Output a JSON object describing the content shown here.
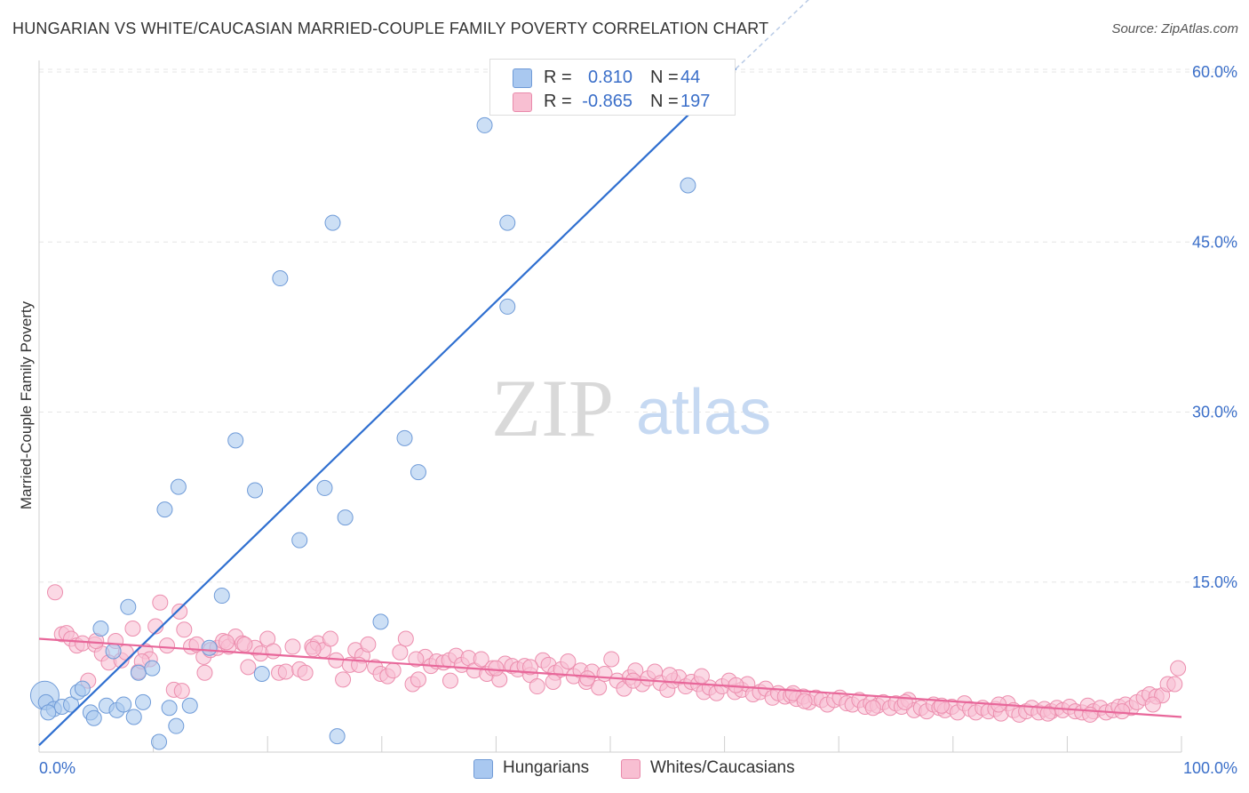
{
  "title": "HUNGARIAN VS WHITE/CAUCASIAN MARRIED-COUPLE FAMILY POVERTY CORRELATION CHART",
  "source": "Source: ZipAtlas.com",
  "watermark": {
    "zip": "ZIP",
    "atlas": "atlas"
  },
  "legend": {
    "r_label": "R =",
    "n_label": "N =",
    "entries": [
      {
        "name": "Hungarians",
        "r": "0.810",
        "n": "44",
        "fill": "#a9c8f0",
        "stroke": "#6f9ad6"
      },
      {
        "name": "Whites/Caucasians",
        "r": "-0.865",
        "n": "197",
        "fill": "#f8bfd2",
        "stroke": "#e98aab"
      }
    ]
  },
  "colors": {
    "blue_fill": "#aac9ef",
    "blue_stroke": "#6f9bd8",
    "blue_line": "#2f6fd0",
    "pink_fill": "#f8c0d3",
    "pink_stroke": "#ec8eae",
    "pink_line": "#e8679a",
    "grid": "#e6e6e6",
    "tick_text": "#3b6fc9"
  },
  "chart_data": {
    "type": "scatter",
    "title": "HUNGARIAN VS WHITE/CAUCASIAN MARRIED-COUPLE FAMILY POVERTY CORRELATION CHART",
    "xlabel": "",
    "ylabel": "Married-Couple Family Poverty",
    "xlim": [
      0,
      100
    ],
    "ylim": [
      0,
      62
    ],
    "x_tick_labels": [
      "0.0%",
      "100.0%"
    ],
    "y_ticks": [
      15,
      30,
      45,
      60
    ],
    "y_tick_labels": [
      "15.0%",
      "30.0%",
      "45.0%",
      "60.0%"
    ],
    "series": [
      {
        "name": "Hungarians",
        "r": 0.81,
        "n": 44,
        "trend": {
          "x": [
            0,
            61
          ],
          "y": [
            0.6,
            60.3
          ],
          "dashed_to": {
            "x": 68,
            "y": 67
          }
        },
        "points": [
          [
            0.5,
            5.0,
            "big"
          ],
          [
            0.6,
            4.4
          ],
          [
            1.3,
            3.8
          ],
          [
            2.0,
            4.0
          ],
          [
            2.8,
            4.2
          ],
          [
            3.4,
            5.3
          ],
          [
            3.8,
            5.6
          ],
          [
            4.5,
            3.5
          ],
          [
            4.8,
            3.0
          ],
          [
            5.4,
            10.9
          ],
          [
            5.9,
            4.1
          ],
          [
            6.5,
            8.9
          ],
          [
            6.8,
            3.7
          ],
          [
            7.4,
            4.2
          ],
          [
            7.8,
            12.8
          ],
          [
            8.3,
            3.1
          ],
          [
            8.7,
            7.0
          ],
          [
            9.1,
            4.4
          ],
          [
            9.9,
            7.4
          ],
          [
            10.5,
            0.9
          ],
          [
            11.0,
            21.4
          ],
          [
            11.4,
            3.9
          ],
          [
            12.0,
            2.3
          ],
          [
            12.2,
            23.4
          ],
          [
            13.2,
            4.1
          ],
          [
            14.9,
            9.2
          ],
          [
            16.0,
            13.8
          ],
          [
            17.2,
            27.5
          ],
          [
            18.9,
            23.1
          ],
          [
            19.5,
            6.9
          ],
          [
            21.1,
            41.8
          ],
          [
            22.8,
            18.7
          ],
          [
            25.0,
            23.3
          ],
          [
            25.7,
            46.7
          ],
          [
            26.1,
            1.4
          ],
          [
            26.8,
            20.7
          ],
          [
            29.9,
            11.5
          ],
          [
            32.0,
            27.7
          ],
          [
            33.2,
            24.7
          ],
          [
            39.0,
            55.3
          ],
          [
            41.0,
            46.7
          ],
          [
            41.0,
            39.3
          ],
          [
            56.8,
            50.0
          ],
          [
            0.8,
            3.5
          ]
        ]
      },
      {
        "name": "Whites/Caucasians",
        "r": -0.865,
        "n": 197,
        "trend": {
          "x": [
            0,
            100
          ],
          "y": [
            10.0,
            3.1
          ]
        },
        "points": [
          [
            1.4,
            14.1
          ],
          [
            2.0,
            10.4
          ],
          [
            2.4,
            10.5
          ],
          [
            2.8,
            10.0
          ],
          [
            3.3,
            9.4
          ],
          [
            3.8,
            9.6
          ],
          [
            4.3,
            6.3
          ],
          [
            4.9,
            9.5
          ],
          [
            5.5,
            8.7
          ],
          [
            6.1,
            7.9
          ],
          [
            6.7,
            9.8
          ],
          [
            7.2,
            8.1
          ],
          [
            7.6,
            8.8
          ],
          [
            8.2,
            10.9
          ],
          [
            8.7,
            7.1
          ],
          [
            9.3,
            8.9
          ],
          [
            9.7,
            8.2
          ],
          [
            10.2,
            11.1
          ],
          [
            10.6,
            13.2
          ],
          [
            11.2,
            9.4
          ],
          [
            11.8,
            5.5
          ],
          [
            12.3,
            12.4
          ],
          [
            12.7,
            10.8
          ],
          [
            13.3,
            9.3
          ],
          [
            13.8,
            9.5
          ],
          [
            14.4,
            8.4
          ],
          [
            15.0,
            9.0
          ],
          [
            15.6,
            9.2
          ],
          [
            16.1,
            9.8
          ],
          [
            16.6,
            9.3
          ],
          [
            17.2,
            10.2
          ],
          [
            17.8,
            9.6
          ],
          [
            18.3,
            7.5
          ],
          [
            18.9,
            9.2
          ],
          [
            19.4,
            8.7
          ],
          [
            20.0,
            10.0
          ],
          [
            20.5,
            8.9
          ],
          [
            21.0,
            7.0
          ],
          [
            21.6,
            7.1
          ],
          [
            22.2,
            9.3
          ],
          [
            22.8,
            7.3
          ],
          [
            23.3,
            7.0
          ],
          [
            23.9,
            9.3
          ],
          [
            24.4,
            9.6
          ],
          [
            24.9,
            9.0
          ],
          [
            25.5,
            10.0
          ],
          [
            26.0,
            8.1
          ],
          [
            26.6,
            6.4
          ],
          [
            27.2,
            7.7
          ],
          [
            27.7,
            9.0
          ],
          [
            28.3,
            8.5
          ],
          [
            28.8,
            9.5
          ],
          [
            29.4,
            7.5
          ],
          [
            29.9,
            6.9
          ],
          [
            30.5,
            6.7
          ],
          [
            31.0,
            7.2
          ],
          [
            31.6,
            8.8
          ],
          [
            32.1,
            10.0
          ],
          [
            32.7,
            6.0
          ],
          [
            33.2,
            6.4
          ],
          [
            33.8,
            8.4
          ],
          [
            34.3,
            7.6
          ],
          [
            34.8,
            8.0
          ],
          [
            35.4,
            7.9
          ],
          [
            35.9,
            8.1
          ],
          [
            36.5,
            8.5
          ],
          [
            37.0,
            7.7
          ],
          [
            37.6,
            8.3
          ],
          [
            38.1,
            7.2
          ],
          [
            38.7,
            8.2
          ],
          [
            39.2,
            6.9
          ],
          [
            39.7,
            7.4
          ],
          [
            40.3,
            6.4
          ],
          [
            40.8,
            7.8
          ],
          [
            41.4,
            7.6
          ],
          [
            41.9,
            7.3
          ],
          [
            42.5,
            7.6
          ],
          [
            43.0,
            6.8
          ],
          [
            43.6,
            5.8
          ],
          [
            44.1,
            8.1
          ],
          [
            44.6,
            7.7
          ],
          [
            45.2,
            7.0
          ],
          [
            45.7,
            7.3
          ],
          [
            46.3,
            8.0
          ],
          [
            46.8,
            6.7
          ],
          [
            47.4,
            7.2
          ],
          [
            47.9,
            6.2
          ],
          [
            48.4,
            7.1
          ],
          [
            49.0,
            5.7
          ],
          [
            49.5,
            6.9
          ],
          [
            50.1,
            8.2
          ],
          [
            50.6,
            6.3
          ],
          [
            51.2,
            5.6
          ],
          [
            51.7,
            6.6
          ],
          [
            52.2,
            7.2
          ],
          [
            52.8,
            6.0
          ],
          [
            53.3,
            6.5
          ],
          [
            53.9,
            7.1
          ],
          [
            54.4,
            6.1
          ],
          [
            55.0,
            5.5
          ],
          [
            55.5,
            6.3
          ],
          [
            56.0,
            6.6
          ],
          [
            56.6,
            5.8
          ],
          [
            57.1,
            6.2
          ],
          [
            57.7,
            6.0
          ],
          [
            58.2,
            5.3
          ],
          [
            58.7,
            5.7
          ],
          [
            59.3,
            5.2
          ],
          [
            59.8,
            5.8
          ],
          [
            60.4,
            6.3
          ],
          [
            60.9,
            5.3
          ],
          [
            61.5,
            5.5
          ],
          [
            62.0,
            6.0
          ],
          [
            62.5,
            5.1
          ],
          [
            63.1,
            5.3
          ],
          [
            63.6,
            5.6
          ],
          [
            64.2,
            4.8
          ],
          [
            64.7,
            5.2
          ],
          [
            65.3,
            4.9
          ],
          [
            65.8,
            5.0
          ],
          [
            66.3,
            4.7
          ],
          [
            66.9,
            4.9
          ],
          [
            67.4,
            4.4
          ],
          [
            68.0,
            4.8
          ],
          [
            68.5,
            4.6
          ],
          [
            69.0,
            4.2
          ],
          [
            69.6,
            4.6
          ],
          [
            70.1,
            4.8
          ],
          [
            70.7,
            4.3
          ],
          [
            71.2,
            4.2
          ],
          [
            71.8,
            4.6
          ],
          [
            72.3,
            4.0
          ],
          [
            72.8,
            4.3
          ],
          [
            73.4,
            4.1
          ],
          [
            73.9,
            4.4
          ],
          [
            74.5,
            3.9
          ],
          [
            75.0,
            4.3
          ],
          [
            75.5,
            4.0
          ],
          [
            76.1,
            4.6
          ],
          [
            76.6,
            3.7
          ],
          [
            77.2,
            3.9
          ],
          [
            77.7,
            3.6
          ],
          [
            78.3,
            4.2
          ],
          [
            78.8,
            3.9
          ],
          [
            79.3,
            3.7
          ],
          [
            79.9,
            4.0
          ],
          [
            80.4,
            3.5
          ],
          [
            81.0,
            4.3
          ],
          [
            81.5,
            3.8
          ],
          [
            82.0,
            3.5
          ],
          [
            82.6,
            3.9
          ],
          [
            83.1,
            3.6
          ],
          [
            83.7,
            3.8
          ],
          [
            84.2,
            3.4
          ],
          [
            84.8,
            4.3
          ],
          [
            85.3,
            3.7
          ],
          [
            85.8,
            3.3
          ],
          [
            86.4,
            3.6
          ],
          [
            86.9,
            3.9
          ],
          [
            87.5,
            3.5
          ],
          [
            88.0,
            3.8
          ],
          [
            88.6,
            3.6
          ],
          [
            89.1,
            3.9
          ],
          [
            89.6,
            3.7
          ],
          [
            90.2,
            4.0
          ],
          [
            90.7,
            3.6
          ],
          [
            91.3,
            3.5
          ],
          [
            91.8,
            4.1
          ],
          [
            92.3,
            3.6
          ],
          [
            92.9,
            3.9
          ],
          [
            93.4,
            3.5
          ],
          [
            94.0,
            3.7
          ],
          [
            94.5,
            4.0
          ],
          [
            95.1,
            4.2
          ],
          [
            95.6,
            3.9
          ],
          [
            96.1,
            4.4
          ],
          [
            96.7,
            4.8
          ],
          [
            97.2,
            5.1
          ],
          [
            97.8,
            4.9
          ],
          [
            98.3,
            5.0
          ],
          [
            98.8,
            6.0
          ],
          [
            99.4,
            6.0
          ],
          [
            99.7,
            7.4
          ],
          [
            12.5,
            5.4
          ],
          [
            14.5,
            7.0
          ],
          [
            36.0,
            6.3
          ],
          [
            48.0,
            6.5
          ],
          [
            58.0,
            6.7
          ],
          [
            66.0,
            5.2
          ],
          [
            75.8,
            4.4
          ],
          [
            84.0,
            4.2
          ],
          [
            92.0,
            3.3
          ],
          [
            97.5,
            4.2
          ],
          [
            28.0,
            7.7
          ],
          [
            40.0,
            7.4
          ],
          [
            52.0,
            6.3
          ],
          [
            61.0,
            5.9
          ],
          [
            79.0,
            4.1
          ],
          [
            88.3,
            3.4
          ],
          [
            94.8,
            3.6
          ],
          [
            45.0,
            6.2
          ],
          [
            33.0,
            8.2
          ],
          [
            16.4,
            9.7
          ],
          [
            5.0,
            9.8
          ],
          [
            73.0,
            3.9
          ],
          [
            67.0,
            4.5
          ],
          [
            55.2,
            6.8
          ],
          [
            43.0,
            7.5
          ],
          [
            24.0,
            9.1
          ],
          [
            18.0,
            9.5
          ],
          [
            9.0,
            8.0
          ]
        ]
      }
    ]
  }
}
